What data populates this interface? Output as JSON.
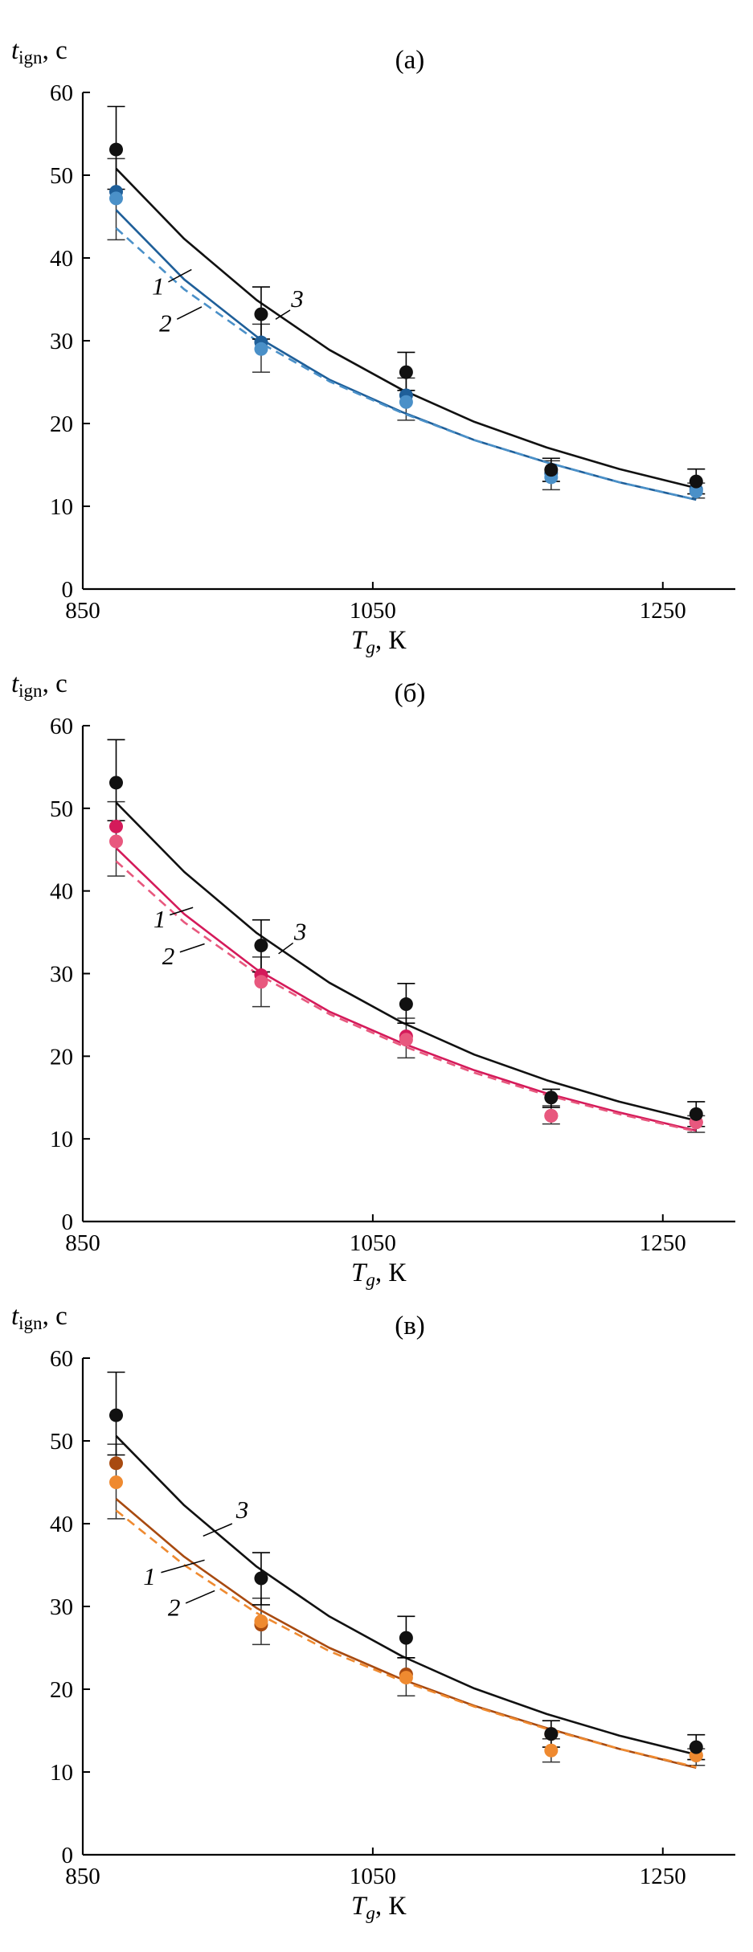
{
  "chart_data": [
    {
      "type": "line",
      "title": "(а)",
      "ylabel_main": "t",
      "ylabel_sub": "ign",
      "ylabel_unit": ", с",
      "xlabel_main": "T",
      "xlabel_sub": "g",
      "xlabel_unit": ", К",
      "xlim": [
        850,
        1300
      ],
      "ylim": [
        0,
        60
      ],
      "xticks": [
        850,
        1050,
        1250
      ],
      "yticks": [
        0,
        10,
        20,
        30,
        40,
        50,
        60
      ],
      "colors": {
        "c1": "#1f5f99",
        "c2": "#4a90c8",
        "c3": "#111111"
      },
      "curves": [
        {
          "id": "1",
          "style": "solid",
          "color": "#1f5f99",
          "x": [
            873,
            920,
            970,
            1020,
            1070,
            1120,
            1170,
            1220,
            1273
          ],
          "y": [
            45.8,
            37.4,
            30.5,
            25.3,
            21.4,
            18.0,
            15.3,
            12.9,
            10.8
          ]
        },
        {
          "id": "2",
          "style": "dashed",
          "color": "#4a90c8",
          "x": [
            873,
            920,
            970,
            1020,
            1070,
            1120,
            1170,
            1220,
            1273
          ],
          "y": [
            43.6,
            36.2,
            30.0,
            25.1,
            21.3,
            18.0,
            15.3,
            12.9,
            10.8
          ]
        },
        {
          "id": "3",
          "style": "solid",
          "color": "#111111",
          "x": [
            873,
            920,
            970,
            1020,
            1070,
            1120,
            1170,
            1220,
            1273
          ],
          "y": [
            50.8,
            42.3,
            34.9,
            28.9,
            24.1,
            20.2,
            17.1,
            14.5,
            12.2
          ]
        }
      ],
      "points": [
        {
          "x": 873,
          "y": 48.0,
          "color": "#1f5f99"
        },
        {
          "x": 873,
          "y": 47.2,
          "color": "#4a90c8"
        },
        {
          "x": 873,
          "y": 53.1,
          "color": "#111111",
          "err": [
            48.3,
            58.3
          ]
        },
        {
          "x": 973,
          "y": 29.8,
          "color": "#1f5f99"
        },
        {
          "x": 973,
          "y": 29.0,
          "color": "#4a90c8"
        },
        {
          "x": 973,
          "y": 33.2,
          "color": "#111111",
          "err": [
            30.2,
            36.5
          ]
        },
        {
          "x": 1073,
          "y": 23.4,
          "color": "#1f5f99"
        },
        {
          "x": 1073,
          "y": 22.6,
          "color": "#4a90c8"
        },
        {
          "x": 1073,
          "y": 26.2,
          "color": "#111111",
          "err": [
            24.0,
            28.6
          ]
        },
        {
          "x": 1173,
          "y": 14.0,
          "color": "#1f5f99"
        },
        {
          "x": 1173,
          "y": 13.5,
          "color": "#4a90c8"
        },
        {
          "x": 1173,
          "y": 14.4,
          "color": "#111111",
          "err": [
            13.0,
            15.8
          ]
        },
        {
          "x": 1273,
          "y": 12.0,
          "color": "#1f5f99"
        },
        {
          "x": 1273,
          "y": 11.8,
          "color": "#4a90c8"
        },
        {
          "x": 1273,
          "y": 13.0,
          "color": "#111111",
          "err": [
            11.5,
            14.5
          ]
        }
      ],
      "colored_errors": [
        {
          "x": 873,
          "err": [
            42.2,
            52.0
          ]
        },
        {
          "x": 973,
          "err": [
            26.2,
            32.0
          ]
        },
        {
          "x": 1073,
          "err": [
            20.4,
            25.5
          ]
        },
        {
          "x": 1173,
          "err": [
            12.0,
            15.5
          ]
        },
        {
          "x": 1273,
          "err": [
            11.0,
            12.8
          ]
        }
      ],
      "curve_labels": [
        {
          "text": "1",
          "lx": 902,
          "ly": 35.6,
          "x1": 909,
          "y1": 37.1,
          "x2": 925,
          "y2": 38.6
        },
        {
          "text": "2",
          "lx": 907,
          "ly": 31.1,
          "x1": 915,
          "y1": 32.6,
          "x2": 932,
          "y2": 34.1
        },
        {
          "text": "3",
          "lx": 998,
          "ly": 34.1,
          "x1": 993,
          "y1": 33.7,
          "x2": 983,
          "y2": 32.6
        }
      ]
    },
    {
      "type": "line",
      "title": "(б)",
      "ylabel_main": "t",
      "ylabel_sub": "ign",
      "ylabel_unit": ", с",
      "xlabel_main": "T",
      "xlabel_sub": "g",
      "xlabel_unit": ", К",
      "xlim": [
        850,
        1300
      ],
      "ylim": [
        0,
        60
      ],
      "xticks": [
        850,
        1050,
        1250
      ],
      "yticks": [
        0,
        10,
        20,
        30,
        40,
        50,
        60
      ],
      "colors": {
        "c1": "#d41a5a",
        "c2": "#e8587e",
        "c3": "#111111"
      },
      "curves": [
        {
          "id": "1",
          "style": "solid",
          "color": "#d41a5a",
          "x": [
            873,
            920,
            970,
            1020,
            1070,
            1120,
            1170,
            1220,
            1273
          ],
          "y": [
            45.2,
            37.2,
            30.5,
            25.4,
            21.6,
            18.3,
            15.5,
            13.2,
            11.0
          ]
        },
        {
          "id": "2",
          "style": "dashed",
          "color": "#e8587e",
          "x": [
            873,
            920,
            970,
            1020,
            1070,
            1120,
            1170,
            1220,
            1273
          ],
          "y": [
            43.6,
            36.2,
            30.0,
            25.1,
            21.3,
            18.0,
            15.3,
            13.0,
            10.9
          ]
        },
        {
          "id": "3",
          "style": "solid",
          "color": "#111111",
          "x": [
            873,
            920,
            970,
            1020,
            1070,
            1120,
            1170,
            1220,
            1273
          ],
          "y": [
            50.7,
            42.3,
            34.9,
            28.9,
            24.1,
            20.2,
            17.1,
            14.5,
            12.2
          ]
        }
      ],
      "points": [
        {
          "x": 873,
          "y": 47.8,
          "color": "#d41a5a"
        },
        {
          "x": 873,
          "y": 46.0,
          "color": "#e8587e"
        },
        {
          "x": 873,
          "y": 53.1,
          "color": "#111111",
          "err": [
            48.5,
            58.3
          ]
        },
        {
          "x": 973,
          "y": 29.8,
          "color": "#d41a5a"
        },
        {
          "x": 973,
          "y": 29.0,
          "color": "#e8587e"
        },
        {
          "x": 973,
          "y": 33.4,
          "color": "#111111",
          "err": [
            30.2,
            36.5
          ]
        },
        {
          "x": 1073,
          "y": 22.4,
          "color": "#d41a5a"
        },
        {
          "x": 1073,
          "y": 22.0,
          "color": "#e8587e"
        },
        {
          "x": 1073,
          "y": 26.3,
          "color": "#111111",
          "err": [
            24.0,
            28.8
          ]
        },
        {
          "x": 1173,
          "y": 12.8,
          "color": "#d41a5a"
        },
        {
          "x": 1173,
          "y": 12.8,
          "color": "#e8587e"
        },
        {
          "x": 1173,
          "y": 15.0,
          "color": "#111111",
          "err": [
            13.8,
            16.0
          ]
        },
        {
          "x": 1273,
          "y": 12.0,
          "color": "#d41a5a"
        },
        {
          "x": 1273,
          "y": 12.0,
          "color": "#e8587e"
        },
        {
          "x": 1273,
          "y": 13.0,
          "color": "#111111",
          "err": [
            11.5,
            14.5
          ]
        }
      ],
      "colored_errors": [
        {
          "x": 873,
          "err": [
            41.8,
            50.8
          ]
        },
        {
          "x": 973,
          "err": [
            26.0,
            32.0
          ]
        },
        {
          "x": 1073,
          "err": [
            19.8,
            24.6
          ]
        },
        {
          "x": 1173,
          "err": [
            11.8,
            14.0
          ]
        },
        {
          "x": 1273,
          "err": [
            10.8,
            12.8
          ]
        }
      ],
      "curve_labels": [
        {
          "text": "1",
          "lx": 903,
          "ly": 35.6,
          "x1": 910,
          "y1": 37.1,
          "x2": 926,
          "y2": 38.0
        },
        {
          "text": "2",
          "lx": 909,
          "ly": 31.1,
          "x1": 917,
          "y1": 32.6,
          "x2": 934,
          "y2": 33.6
        },
        {
          "text": "3",
          "lx": 1000,
          "ly": 34.1,
          "x1": 995,
          "y1": 33.7,
          "x2": 985,
          "y2": 32.4
        }
      ]
    },
    {
      "type": "line",
      "title": "(в)",
      "ylabel_main": "t",
      "ylabel_sub": "ign",
      "ylabel_unit": ", с",
      "xlabel_main": "T",
      "xlabel_sub": "g",
      "xlabel_unit": ", К",
      "xlim": [
        850,
        1300
      ],
      "ylim": [
        0,
        60
      ],
      "xticks": [
        850,
        1050,
        1250
      ],
      "yticks": [
        0,
        10,
        20,
        30,
        40,
        50,
        60
      ],
      "colors": {
        "c1": "#a84a10",
        "c2": "#ef8a30",
        "c3": "#111111"
      },
      "curves": [
        {
          "id": "1",
          "style": "solid",
          "color": "#a84a10",
          "x": [
            873,
            920,
            970,
            1020,
            1070,
            1120,
            1170,
            1220,
            1273
          ],
          "y": [
            43.0,
            36.0,
            29.8,
            25.0,
            21.2,
            18.0,
            15.3,
            12.8,
            10.5
          ]
        },
        {
          "id": "2",
          "style": "dashed",
          "color": "#ef8a30",
          "x": [
            873,
            920,
            970,
            1020,
            1070,
            1120,
            1170,
            1220,
            1273
          ],
          "y": [
            41.6,
            35.0,
            29.2,
            24.6,
            21.0,
            17.9,
            15.2,
            12.8,
            10.6
          ]
        },
        {
          "id": "3",
          "style": "solid",
          "color": "#111111",
          "x": [
            873,
            920,
            970,
            1020,
            1070,
            1120,
            1170,
            1220,
            1273
          ],
          "y": [
            50.6,
            42.2,
            34.8,
            28.8,
            24.0,
            20.1,
            17.0,
            14.4,
            12.1
          ]
        }
      ],
      "points": [
        {
          "x": 873,
          "y": 47.3,
          "color": "#a84a10"
        },
        {
          "x": 873,
          "y": 45.0,
          "color": "#ef8a30"
        },
        {
          "x": 873,
          "y": 53.1,
          "color": "#111111",
          "err": [
            48.3,
            58.3
          ]
        },
        {
          "x": 973,
          "y": 27.8,
          "color": "#a84a10"
        },
        {
          "x": 973,
          "y": 28.2,
          "color": "#ef8a30"
        },
        {
          "x": 973,
          "y": 33.4,
          "color": "#111111",
          "err": [
            30.2,
            36.5
          ]
        },
        {
          "x": 1073,
          "y": 21.8,
          "color": "#a84a10"
        },
        {
          "x": 1073,
          "y": 21.4,
          "color": "#ef8a30"
        },
        {
          "x": 1073,
          "y": 26.2,
          "color": "#111111",
          "err": [
            23.8,
            28.8
          ]
        },
        {
          "x": 1173,
          "y": 14.6,
          "color": "#a84a10"
        },
        {
          "x": 1173,
          "y": 12.6,
          "color": "#ef8a30"
        },
        {
          "x": 1173,
          "y": 14.6,
          "color": "#111111",
          "err": [
            13.0,
            16.2
          ]
        },
        {
          "x": 1273,
          "y": 12.0,
          "color": "#a84a10"
        },
        {
          "x": 1273,
          "y": 12.0,
          "color": "#ef8a30"
        },
        {
          "x": 1273,
          "y": 13.0,
          "color": "#111111",
          "err": [
            11.5,
            14.5
          ]
        }
      ],
      "colored_errors": [
        {
          "x": 873,
          "err": [
            40.6,
            49.6
          ]
        },
        {
          "x": 973,
          "err": [
            25.4,
            31.0
          ]
        },
        {
          "x": 1073,
          "err": [
            19.2,
            23.8
          ]
        },
        {
          "x": 1173,
          "err": [
            11.2,
            14.0
          ]
        },
        {
          "x": 1273,
          "err": [
            10.8,
            12.8
          ]
        }
      ],
      "curve_labels": [
        {
          "text": "1",
          "lx": 896,
          "ly": 32.6,
          "x1": 904,
          "y1": 34.1,
          "x2": 934,
          "y2": 35.6
        },
        {
          "text": "2",
          "lx": 913,
          "ly": 28.9,
          "x1": 921,
          "y1": 30.4,
          "x2": 941,
          "y2": 31.9
        },
        {
          "text": "3",
          "lx": 960,
          "ly": 40.7,
          "x1": 953,
          "y1": 40.0,
          "x2": 933,
          "y2": 38.5
        }
      ]
    }
  ]
}
